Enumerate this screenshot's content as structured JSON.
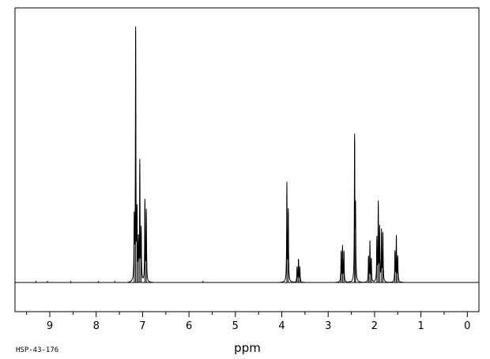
{
  "sample_id": "HSP-43-176",
  "chart_data": {
    "type": "line",
    "xlabel": "ppm",
    "xlim": [
      9.75,
      -0.25
    ],
    "x_reversed": true,
    "ylim": [
      -0.1,
      1.05
    ],
    "grid": false,
    "x_tick_labels": [
      "9",
      "8",
      "7",
      "6",
      "5",
      "4",
      "3",
      "2",
      "1",
      "0"
    ],
    "x_ticks": [
      9,
      8,
      7,
      6,
      5,
      4,
      3,
      2,
      1,
      0
    ],
    "peaks": [
      {
        "shift": 7.18,
        "intensity": 0.24
      },
      {
        "shift": 7.15,
        "intensity": 1.0
      },
      {
        "shift": 7.12,
        "intensity": 0.26
      },
      {
        "shift": 7.09,
        "intensity": 0.15
      },
      {
        "shift": 7.06,
        "intensity": 0.47
      },
      {
        "shift": 7.03,
        "intensity": 0.2
      },
      {
        "shift": 6.95,
        "intensity": 0.32
      },
      {
        "shift": 6.92,
        "intensity": 0.28
      },
      {
        "shift": 3.89,
        "intensity": 0.39
      },
      {
        "shift": 3.86,
        "intensity": 0.28
      },
      {
        "shift": 3.67,
        "intensity": 0.06
      },
      {
        "shift": 3.64,
        "intensity": 0.09
      },
      {
        "shift": 3.61,
        "intensity": 0.06
      },
      {
        "shift": 2.72,
        "intensity": 0.12
      },
      {
        "shift": 2.69,
        "intensity": 0.14
      },
      {
        "shift": 2.66,
        "intensity": 0.12
      },
      {
        "shift": 2.43,
        "intensity": 0.57
      },
      {
        "shift": 2.41,
        "intensity": 0.28
      },
      {
        "shift": 2.13,
        "intensity": 0.1
      },
      {
        "shift": 2.1,
        "intensity": 0.16
      },
      {
        "shift": 2.07,
        "intensity": 0.09
      },
      {
        "shift": 1.95,
        "intensity": 0.17
      },
      {
        "shift": 1.92,
        "intensity": 0.31
      },
      {
        "shift": 1.89,
        "intensity": 0.21
      },
      {
        "shift": 1.85,
        "intensity": 0.2
      },
      {
        "shift": 1.82,
        "intensity": 0.19
      },
      {
        "shift": 1.56,
        "intensity": 0.12
      },
      {
        "shift": 1.53,
        "intensity": 0.18
      },
      {
        "shift": 1.5,
        "intensity": 0.1
      }
    ]
  }
}
